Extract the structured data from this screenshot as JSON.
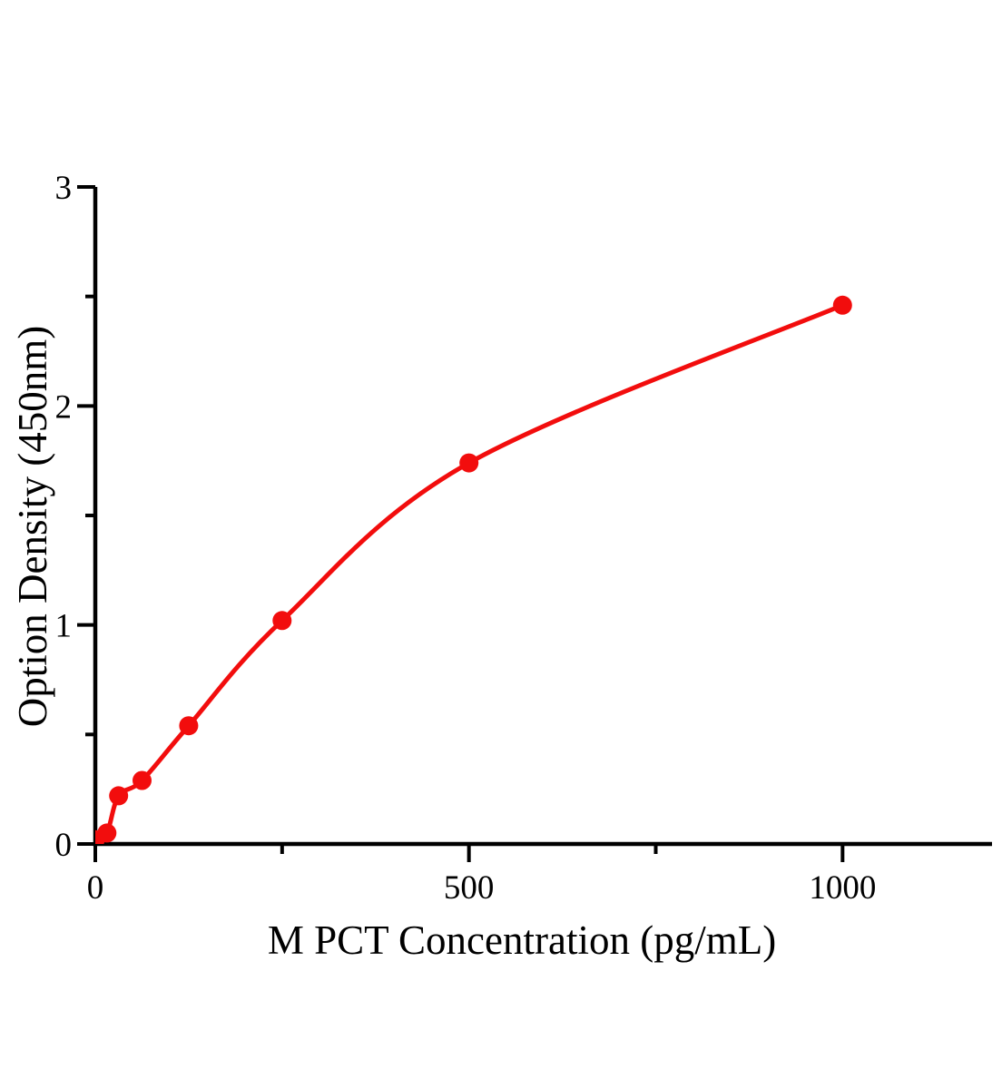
{
  "chart_data": {
    "type": "line",
    "title": "",
    "xlabel": "M PCT Concentration (pg/mL)",
    "ylabel": "Option Density (450nm)",
    "x": [
      0,
      15.6,
      31.25,
      62.5,
      125,
      250,
      500,
      1000
    ],
    "values": [
      0.02,
      0.05,
      0.22,
      0.29,
      0.54,
      1.02,
      1.74,
      2.46
    ],
    "xlim": [
      0,
      1200
    ],
    "ylim": [
      0,
      3
    ],
    "x_major_ticks": [
      0,
      500,
      1000
    ],
    "x_major_tick_labels": [
      "0",
      "500",
      "1000"
    ],
    "x_minor_ticks": [
      250,
      750
    ],
    "y_major_ticks": [
      0,
      1,
      2,
      3
    ],
    "y_major_tick_labels": [
      "0",
      "1",
      "2",
      "3"
    ],
    "y_minor_ticks": [
      0.5,
      1.5,
      2.5
    ],
    "grid": false,
    "legend": "none",
    "marker": "circle",
    "line_style": "smooth",
    "colors": {
      "curve": "#f20d0d",
      "marker": "#f20d0d",
      "axis": "#000000",
      "text": "#000000",
      "background": "#ffffff"
    }
  }
}
